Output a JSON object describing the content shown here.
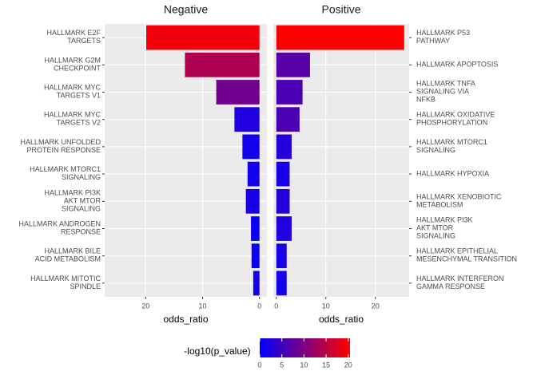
{
  "chart_data": {
    "type": "bar",
    "panels": [
      {
        "title": "Negative",
        "x_label": "odds_ratio",
        "categories": [
          "HALLMARK E2F\nTARGETS",
          "HALLMARK G2M\nCHECKPOINT",
          "HALLMARK MYC\nTARGETS V1",
          "HALLMARK MYC\nTARGETS V2",
          "HALLMARK UNFOLDED\nPROTEIN RESPONSE",
          "HALLMARK MTORC1\nSIGNALING",
          "HALLMARK PI3K\nAKT MTOR\nSIGNALING",
          "HALLMARK ANDROGEN\nRESPONSE",
          "HALLMARK BILE\nACID METABOLISM",
          "HALLMARK MITOTIC\nSPINDLE"
        ],
        "values": [
          19.9,
          13.1,
          7.6,
          4.4,
          3.0,
          2.1,
          2.4,
          1.5,
          1.4,
          1.1
        ],
        "neg_log10_p": [
          19.5,
          14.0,
          9.0,
          2.5,
          1.5,
          1.5,
          2.0,
          1.0,
          1.0,
          1.5
        ],
        "xlim": [
          27.2,
          -1.3
        ],
        "xticks": [
          20,
          10,
          0
        ],
        "label_side": "left"
      },
      {
        "title": "Positive",
        "x_label": "odds_ratio",
        "categories": [
          "HALLMARK P53\nPATHWAY",
          "HALLMARK APOPTOSIS",
          "HALLMARK TNFA\nSIGNALING VIA\nNFKB",
          "HALLMARK OXIDATIVE\nPHOSPHORYLATION",
          "HALLMARK MTORC1\nSIGNALING",
          "HALLMARK HYPOXIA",
          "HALLMARK XENOBIOTIC\nMETABOLISM",
          "HALLMARK PI3K\nAKT MTOR\nSIGNALING",
          "HALLMARK EPITHELIAL\nMESENCHYMAL TRANSITION",
          "HALLMARK INTERFERON\nGAMMA RESPONSE"
        ],
        "values": [
          25.8,
          6.8,
          5.3,
          4.7,
          3.1,
          2.7,
          2.7,
          3.1,
          2.1,
          2.1
        ],
        "neg_log10_p": [
          20.4,
          7.0,
          6.0,
          6.0,
          3.0,
          2.0,
          3.0,
          2.5,
          2.0,
          1.5
        ],
        "xlim": [
          -0.6,
          26.8
        ],
        "xticks": [
          0,
          10,
          20
        ],
        "label_side": "right"
      }
    ],
    "colorbar": {
      "title": "-log10(p_value)",
      "lim": [
        0,
        20.4
      ],
      "ticks": [
        0,
        5,
        10,
        15,
        20
      ],
      "low": "#0000ff",
      "high": "#ff0000"
    },
    "grid": true
  }
}
